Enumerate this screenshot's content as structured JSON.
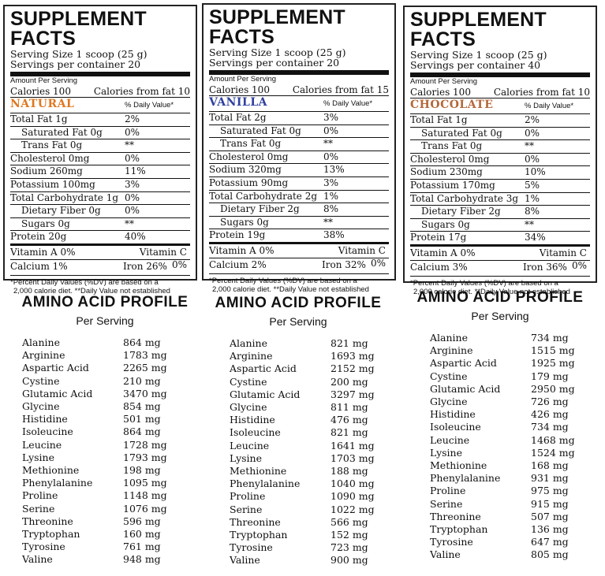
{
  "labels": {
    "title": "SUPPLEMENT FACTS",
    "amount_per_serving": "Amount Per Serving",
    "dv_header": "% Daily Value*",
    "footnote_line1": "*Percent Daily Values (%DV) are based on a",
    "footnote_line2": "2,000 calorie diet. **Daily Value not established",
    "amino_title": "AMINO ACID PROFILE",
    "amino_sub": "Per Serving"
  },
  "panels": [
    {
      "flavor": "NATURAL",
      "flavor_color": "#E07820",
      "serving_size": "Serving Size 1 scoop (25 g)",
      "servings": "Servings per container 20",
      "calories": "Calories 100",
      "calories_fat": "Calories from fat 10",
      "nutrients": [
        {
          "name": "Total Fat 1g",
          "dv": "2%"
        },
        {
          "name": "Saturated Fat 0g",
          "dv": "0%"
        },
        {
          "name": "Trans Fat 0g",
          "dv": "**"
        },
        {
          "name": "Cholesterol 0mg",
          "dv": "0%"
        },
        {
          "name": "Sodium 260mg",
          "dv": "11%"
        },
        {
          "name": "Potassium 100mg",
          "dv": "3%"
        },
        {
          "name": "Total Carbohydrate 1g",
          "dv": "0%"
        },
        {
          "name": "Dietary Fiber 0g",
          "dv": "0%"
        },
        {
          "name": "Sugars 0g",
          "dv": "**"
        },
        {
          "name": "Protein 20g",
          "dv": "40%"
        }
      ],
      "vit_a": "Vitamin A 0%",
      "vit_c": "Vitamin C 0%",
      "calcium": "Calcium 1%",
      "iron": "Iron 26%"
    },
    {
      "flavor": "VANILLA",
      "flavor_color": "#2F3F9F",
      "serving_size": "Serving Size 1 scoop (25 g)",
      "servings": "Servings per container 20",
      "calories": "Calories 100",
      "calories_fat": "Calories from fat 15",
      "nutrients": [
        {
          "name": "Total Fat 2g",
          "dv": "3%"
        },
        {
          "name": "Saturated Fat 0g",
          "dv": "0%"
        },
        {
          "name": "Trans Fat 0g",
          "dv": "**"
        },
        {
          "name": "Cholesterol 0mg",
          "dv": "0%"
        },
        {
          "name": "Sodium 320mg",
          "dv": "13%"
        },
        {
          "name": "Potassium 90mg",
          "dv": "3%"
        },
        {
          "name": "Total Carbohydrate 2g",
          "dv": "1%"
        },
        {
          "name": "Dietary Fiber 2g",
          "dv": "8%"
        },
        {
          "name": "Sugars 0g",
          "dv": "**"
        },
        {
          "name": "Protein 19g",
          "dv": "38%"
        }
      ],
      "vit_a": "Vitamin A 0%",
      "vit_c": "Vitamin C 0%",
      "calcium": "Calcium 2%",
      "iron": "Iron 32%"
    },
    {
      "flavor": "CHOCOLATE",
      "flavor_color": "#B5683A",
      "serving_size": "Serving Size 1 scoop (25 g)",
      "servings": "Servings per container 40",
      "calories": "Calories 100",
      "calories_fat": "Calories from fat 10",
      "nutrients": [
        {
          "name": "Total Fat 1g",
          "dv": "2%"
        },
        {
          "name": "Saturated Fat 0g",
          "dv": "0%"
        },
        {
          "name": "Trans Fat 0g",
          "dv": "**"
        },
        {
          "name": "Cholesterol 0mg",
          "dv": "0%"
        },
        {
          "name": "Sodium 230mg",
          "dv": "10%"
        },
        {
          "name": "Potassium 170mg",
          "dv": "5%"
        },
        {
          "name": "Total Carbohydrate 3g",
          "dv": "1%"
        },
        {
          "name": "Dietary Fiber 2g",
          "dv": "8%"
        },
        {
          "name": "Sugars 0g",
          "dv": "**"
        },
        {
          "name": "Protein 17g",
          "dv": "34%"
        }
      ],
      "vit_a": "Vitamin A 0%",
      "vit_c": "Vitamin C 0%",
      "calcium": "Calcium 3%",
      "iron": "Iron 36%"
    }
  ],
  "amino_profiles": [
    [
      {
        "name": "Alanine",
        "value": "864 mg"
      },
      {
        "name": "Arginine",
        "value": "1783 mg"
      },
      {
        "name": "Aspartic Acid",
        "value": "2265 mg"
      },
      {
        "name": "Cystine",
        "value": "210 mg"
      },
      {
        "name": "Glutamic Acid",
        "value": "3470 mg"
      },
      {
        "name": "Glycine",
        "value": "854 mg"
      },
      {
        "name": "Histidine",
        "value": "501 mg"
      },
      {
        "name": "Isoleucine",
        "value": "864 mg"
      },
      {
        "name": "Leucine",
        "value": "1728 mg"
      },
      {
        "name": "Lysine",
        "value": "1793 mg"
      },
      {
        "name": "Methionine",
        "value": "198 mg"
      },
      {
        "name": "Phenylalanine",
        "value": "1095 mg"
      },
      {
        "name": "Proline",
        "value": "1148 mg"
      },
      {
        "name": "Serine",
        "value": "1076 mg"
      },
      {
        "name": "Threonine",
        "value": "596 mg"
      },
      {
        "name": "Tryptophan",
        "value": "160 mg"
      },
      {
        "name": "Tyrosine",
        "value": "761 mg"
      },
      {
        "name": "Valine",
        "value": "948 mg"
      }
    ],
    [
      {
        "name": "Alanine",
        "value": "821 mg"
      },
      {
        "name": "Arginine",
        "value": "1693 mg"
      },
      {
        "name": "Aspartic Acid",
        "value": "2152 mg"
      },
      {
        "name": "Cystine",
        "value": "200 mg"
      },
      {
        "name": "Glutamic Acid",
        "value": "3297 mg"
      },
      {
        "name": "Glycine",
        "value": "811 mg"
      },
      {
        "name": "Histidine",
        "value": "476 mg"
      },
      {
        "name": "Isoleucine",
        "value": "821 mg"
      },
      {
        "name": "Leucine",
        "value": "1641 mg"
      },
      {
        "name": "Lysine",
        "value": "1703 mg"
      },
      {
        "name": "Methionine",
        "value": "188 mg"
      },
      {
        "name": "Phenylalanine",
        "value": "1040 mg"
      },
      {
        "name": "Proline",
        "value": "1090 mg"
      },
      {
        "name": "Serine",
        "value": "1022 mg"
      },
      {
        "name": "Threonine",
        "value": "566 mg"
      },
      {
        "name": "Tryptophan",
        "value": "152 mg"
      },
      {
        "name": "Tyrosine",
        "value": "723 mg"
      },
      {
        "name": "Valine",
        "value": "900 mg"
      }
    ],
    [
      {
        "name": "Alanine",
        "value": "734 mg"
      },
      {
        "name": "Arginine",
        "value": "1515 mg"
      },
      {
        "name": "Aspartic Acid",
        "value": "1925 mg"
      },
      {
        "name": "Cystine",
        "value": "179 mg"
      },
      {
        "name": "Glutamic Acid",
        "value": "2950 mg"
      },
      {
        "name": "Glycine",
        "value": "726 mg"
      },
      {
        "name": "Histidine",
        "value": "426 mg"
      },
      {
        "name": "Isoleucine",
        "value": "734 mg"
      },
      {
        "name": "Leucine",
        "value": "1468 mg"
      },
      {
        "name": "Lysine",
        "value": "1524 mg"
      },
      {
        "name": "Methionine",
        "value": "168 mg"
      },
      {
        "name": "Phenylalanine",
        "value": "931 mg"
      },
      {
        "name": "Proline",
        "value": "975 mg"
      },
      {
        "name": "Serine",
        "value": "915 mg"
      },
      {
        "name": "Threonine",
        "value": "507 mg"
      },
      {
        "name": "Tryptophan",
        "value": "136 mg"
      },
      {
        "name": "Tyrosine",
        "value": "647 mg"
      },
      {
        "name": "Valine",
        "value": "805 mg"
      }
    ]
  ]
}
